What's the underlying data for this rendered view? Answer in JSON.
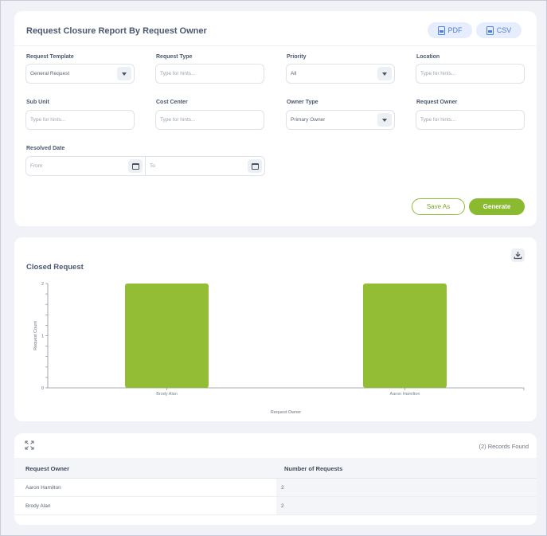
{
  "report": {
    "title": "Request Closure Report By Request Owner",
    "pdf_label": "PDF",
    "csv_label": "CSV"
  },
  "filters": {
    "request_template": {
      "label": "Request Template",
      "value": "General Request"
    },
    "request_type": {
      "label": "Request Type",
      "placeholder": "Type for hints..."
    },
    "priority": {
      "label": "Priority",
      "value": "All"
    },
    "location": {
      "label": "Location",
      "placeholder": "Type for hints..."
    },
    "sub_unit": {
      "label": "Sub Unit",
      "placeholder": "Type for hints..."
    },
    "cost_center": {
      "label": "Cost Center",
      "placeholder": "Type for hints..."
    },
    "owner_type": {
      "label": "Owner Type",
      "value": "Primary Owner"
    },
    "request_owner": {
      "label": "Request Owner",
      "placeholder": "Type for hints..."
    },
    "resolved_date": {
      "label": "Resolved Date",
      "from_placeholder": "From",
      "to_placeholder": "To"
    }
  },
  "actions": {
    "save_as": "Save As",
    "generate": "Generate"
  },
  "chart": {
    "title": "Closed Request"
  },
  "chart_data": {
    "type": "bar",
    "categories": [
      "Brody Alan",
      "Aaron Hamilton"
    ],
    "values": [
      2,
      2
    ],
    "xlabel": "Request Owner",
    "ylabel": "Request Count",
    "ylim": [
      0,
      2
    ],
    "y_major_ticks": [
      0,
      1,
      2
    ],
    "y_minor_step": 0.2,
    "bar_color": "#93bd35",
    "grid": false,
    "legend": "none"
  },
  "table": {
    "records_found": "(2) Records Found",
    "columns": [
      "Request Owner",
      "Number of Requests"
    ],
    "rows": [
      {
        "owner": "Aaron Hamilton",
        "count": "2"
      },
      {
        "owner": "Brody Alan",
        "count": "2"
      }
    ]
  },
  "colors": {
    "accent_green": "#8aba30",
    "export_blue": "#4d7cdf",
    "background": "#f1f2f8"
  }
}
